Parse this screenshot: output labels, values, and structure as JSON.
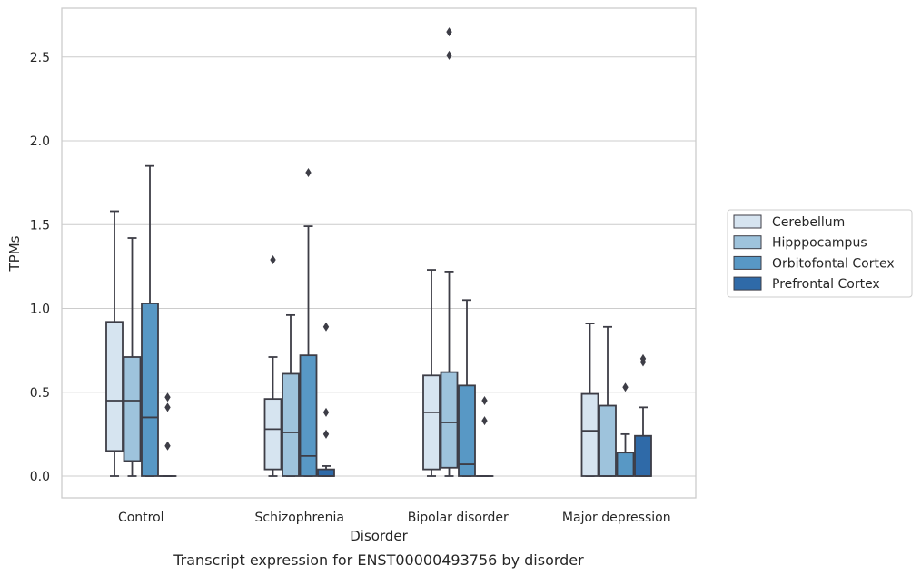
{
  "caption": "Transcript expression for ENST00000493756 by disorder",
  "chart_data": {
    "type": "box",
    "xlabel": "Disorder",
    "ylabel": "TPMs",
    "ylim": [
      -0.13,
      2.8
    ],
    "yticks": [
      "0.0",
      "0.5",
      "1.0",
      "1.5",
      "2.0",
      "2.5"
    ],
    "grid": true,
    "legend_position": "right",
    "categories": [
      "Control",
      "Schizophrenia",
      "Bipolar disorder",
      "Major depression"
    ],
    "series": [
      {
        "name": "Cerebellum",
        "color": "#d6e4f0",
        "boxes": [
          {
            "whislo": 0.0,
            "q1": 0.15,
            "med": 0.45,
            "q3": 0.92,
            "whishi": 1.58,
            "fliers": []
          },
          {
            "whislo": 0.0,
            "q1": 0.04,
            "med": 0.28,
            "q3": 0.46,
            "whishi": 0.71,
            "fliers": [
              1.29
            ]
          },
          {
            "whislo": 0.0,
            "q1": 0.04,
            "med": 0.38,
            "q3": 0.6,
            "whishi": 1.23,
            "fliers": []
          },
          {
            "whislo": 0.0,
            "q1": 0.0,
            "med": 0.27,
            "q3": 0.49,
            "whishi": 0.91,
            "fliers": []
          }
        ]
      },
      {
        "name": "Hipppocampus",
        "color": "#9ec3dc",
        "boxes": [
          {
            "whislo": 0.0,
            "q1": 0.09,
            "med": 0.45,
            "q3": 0.71,
            "whishi": 1.42,
            "fliers": []
          },
          {
            "whislo": 0.0,
            "q1": 0.0,
            "med": 0.26,
            "q3": 0.61,
            "whishi": 0.96,
            "fliers": []
          },
          {
            "whislo": 0.0,
            "q1": 0.05,
            "med": 0.32,
            "q3": 0.62,
            "whishi": 1.22,
            "fliers": [
              2.51,
              2.65
            ]
          },
          {
            "whislo": 0.0,
            "q1": 0.0,
            "med": 0.0,
            "q3": 0.42,
            "whishi": 0.89,
            "fliers": []
          }
        ]
      },
      {
        "name": "Orbitofontal Cortex",
        "color": "#5898c5",
        "boxes": [
          {
            "whislo": 0.0,
            "q1": 0.0,
            "med": 0.35,
            "q3": 1.03,
            "whishi": 1.85,
            "fliers": []
          },
          {
            "whislo": 0.0,
            "q1": 0.0,
            "med": 0.12,
            "q3": 0.72,
            "whishi": 1.49,
            "fliers": [
              1.81
            ]
          },
          {
            "whislo": 0.0,
            "q1": 0.0,
            "med": 0.07,
            "q3": 0.54,
            "whishi": 1.05,
            "fliers": []
          },
          {
            "whislo": 0.0,
            "q1": 0.0,
            "med": 0.0,
            "q3": 0.14,
            "whishi": 0.25,
            "fliers": [
              0.53
            ]
          }
        ]
      },
      {
        "name": "Prefrontal Cortex",
        "color": "#2f6aa8",
        "boxes": [
          {
            "whislo": 0.0,
            "q1": 0.0,
            "med": 0.0,
            "q3": 0.0,
            "whishi": 0.0,
            "fliers": [
              0.18,
              0.41,
              0.47
            ]
          },
          {
            "whislo": 0.0,
            "q1": 0.0,
            "med": 0.0,
            "q3": 0.04,
            "whishi": 0.06,
            "fliers": [
              0.25,
              0.38,
              0.89
            ]
          },
          {
            "whislo": 0.0,
            "q1": 0.0,
            "med": 0.0,
            "q3": 0.0,
            "whishi": 0.0,
            "fliers": [
              0.33,
              0.45
            ]
          },
          {
            "whislo": 0.0,
            "q1": 0.0,
            "med": 0.0,
            "q3": 0.24,
            "whishi": 0.41,
            "fliers": [
              0.68,
              0.7
            ]
          }
        ]
      }
    ]
  }
}
